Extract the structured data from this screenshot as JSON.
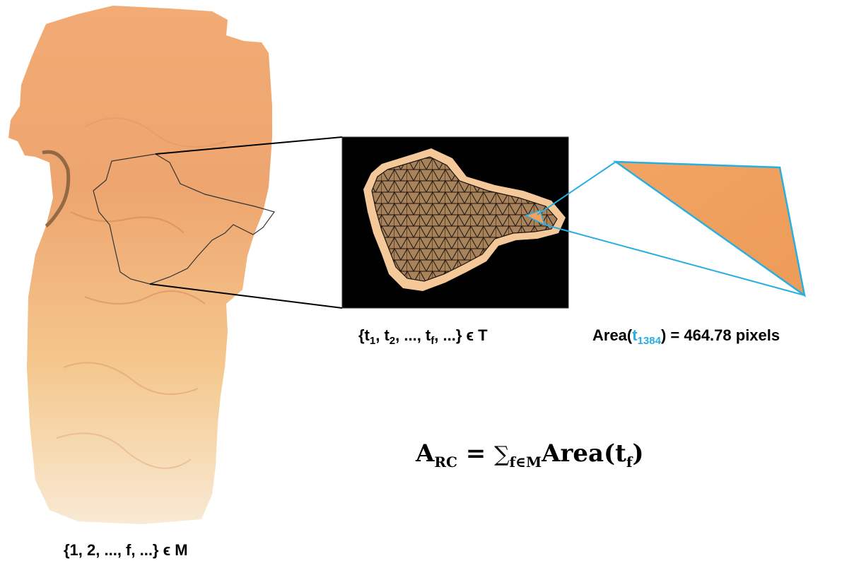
{
  "figure": {
    "left_caption": {
      "text": "{1, 2, ..., f, ...} ϵ M"
    },
    "mesh_caption": {
      "open": "{t",
      "sub1": "1",
      "sep1": ", t",
      "sub2": "2",
      "sep2": ", ..., t",
      "subf": "f",
      "close": ", ...} ϵ T"
    },
    "area_caption": {
      "prefix": "Area(",
      "t": "t",
      "index": "1384",
      "suffix": ") = 464.78 pixels"
    },
    "formula": {
      "lhs": "A",
      "lhs_sub": "RC",
      "eq": " = ",
      "sum": "∑",
      "sum_sub": "f∈M",
      "rhs": "Area(t",
      "rhs_sub": "f",
      "rhs_close": ")"
    }
  },
  "colors": {
    "tissue_light": "#f7d9a8",
    "tissue_dark": "#eea06b",
    "triangle_fill": "#f2a25e",
    "highlight_line": "#29aee1",
    "mesh_background": "#000000",
    "connector_line": "#000000"
  }
}
